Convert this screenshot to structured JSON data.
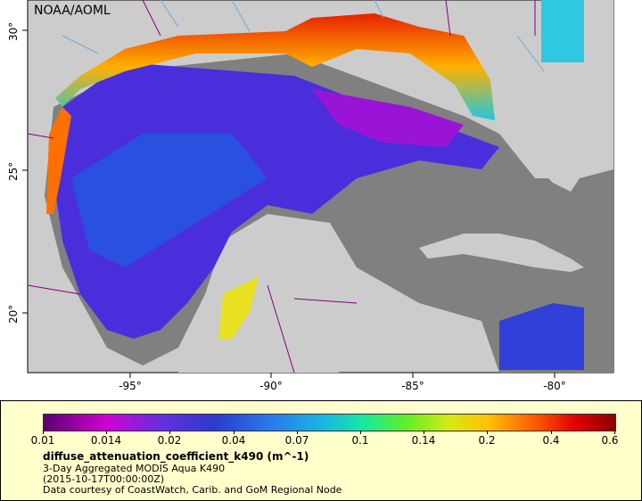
{
  "map": {
    "watermark": "NOAA/AOML",
    "lon_labels": [
      "-95°",
      "-90°",
      "-85°",
      "-80°"
    ],
    "lat_labels": [
      "30°",
      "25°",
      "20°"
    ],
    "colors": {
      "land": "#cccccc",
      "nodata": "#808080",
      "border": "#800080",
      "rivers": "#6fa8dc"
    }
  },
  "legend": {
    "variable": "diffuse_attenuation_coefficient_k490 (m^-1)",
    "product": "3-Day Aggregated MODIS Aqua K490",
    "time": "(2015-10-17T00:00:00Z)",
    "credit": "Data courtesy of CoastWatch, Carib. and GoM Regional Node",
    "ticks": [
      "0.01",
      "0.014",
      "0.02",
      "0.04",
      "0.07",
      "0.1",
      "0.14",
      "0.2",
      "0.4",
      "0.6"
    ],
    "background": "#ffffcc"
  }
}
